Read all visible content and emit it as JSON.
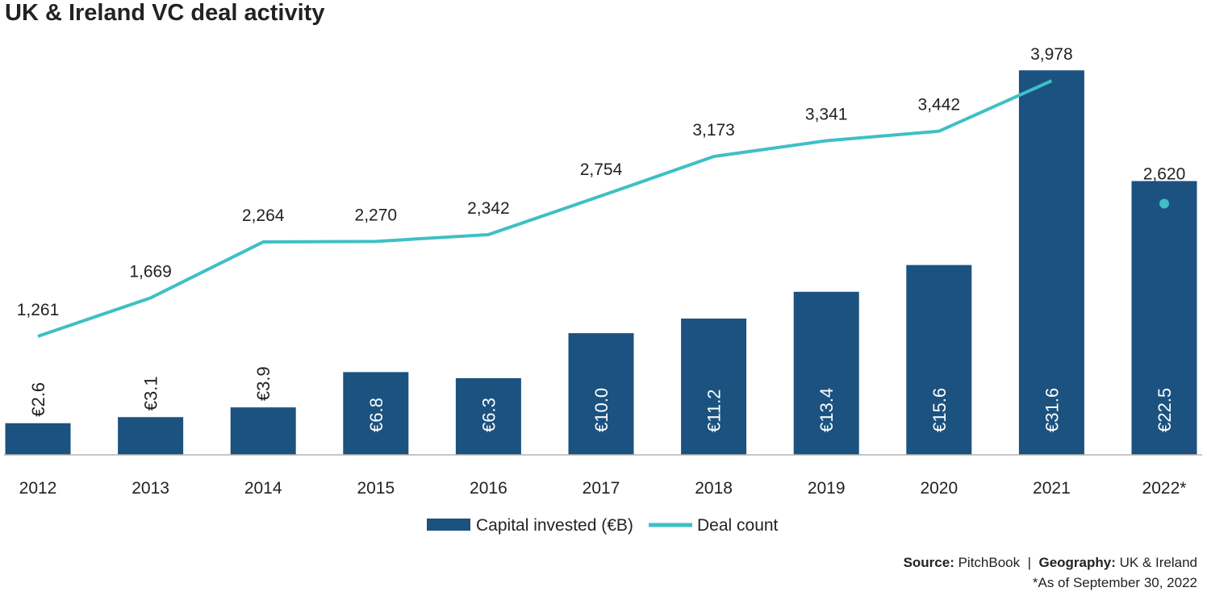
{
  "title": "UK & Ireland VC deal activity",
  "chart_data": {
    "type": "bar+line",
    "categories": [
      "2012",
      "2013",
      "2014",
      "2015",
      "2016",
      "2017",
      "2018",
      "2019",
      "2020",
      "2021",
      "2022*"
    ],
    "series": [
      {
        "name": "Capital invested (€B)",
        "type": "bar",
        "color": "#1b5280",
        "values": [
          2.6,
          3.1,
          3.9,
          6.8,
          6.3,
          10.0,
          11.2,
          13.4,
          15.6,
          31.6,
          22.5
        ],
        "labels": [
          "€2.6",
          "€3.1",
          "€3.9",
          "€6.8",
          "€6.3",
          "€10.0",
          "€11.2",
          "€13.4",
          "€15.6",
          "€31.6",
          "€22.5"
        ],
        "ylim": [
          0,
          34
        ]
      },
      {
        "name": "Deal count",
        "type": "line",
        "color": "#3fbfc6",
        "values": [
          1261,
          1669,
          2264,
          2270,
          2342,
          2754,
          3173,
          3341,
          3442,
          3978,
          2620
        ],
        "labels": [
          "1,261",
          "1,669",
          "2,264",
          "2,270",
          "2,342",
          "2,754",
          "3,173",
          "3,341",
          "3,442",
          "3,978",
          "2,620"
        ],
        "ylim": [
          0,
          4400
        ],
        "note": "2022* shown as separate point"
      }
    ],
    "legend": "bottom-center",
    "grid": false
  },
  "footer": {
    "source_label": "Source:",
    "source": "PitchBook",
    "separator": "|",
    "geography_label": "Geography:",
    "geography": "UK & Ireland",
    "note": "*As of September 30, 2022"
  }
}
